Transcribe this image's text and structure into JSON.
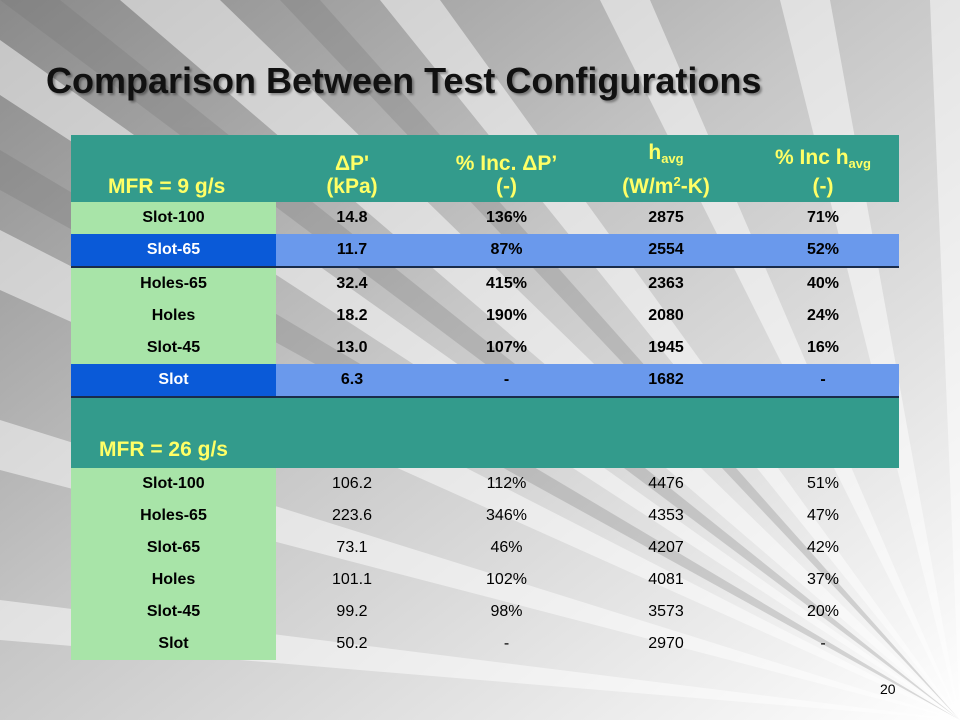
{
  "slide": {
    "title": "Comparison Between Test Configurations",
    "page_number": "20"
  },
  "table1": {
    "mfr_label": "MFR = 9 g/s",
    "headers": {
      "dp_line1": "ΔP'",
      "dp_line2": "(kPa)",
      "incdp_line1": "% Inc. ΔP’",
      "incdp_line2": "(-)",
      "havg_base": "h",
      "havg_sub": "avg",
      "havg_unit_a": "(W/m",
      "havg_unit_sup": "2",
      "havg_unit_b": "-K)",
      "inch_base": "% Inc h",
      "inch_sub": "avg",
      "inch_line2": "(-)"
    },
    "rows": [
      {
        "label": "Slot-100",
        "dp": "14.8",
        "inc_dp": "136%",
        "havg": "2875",
        "inc_h": "71%"
      },
      {
        "label": "Slot-65",
        "dp": "11.7",
        "inc_dp": "87%",
        "havg": "2554",
        "inc_h": "52%"
      },
      {
        "label": "Holes-65",
        "dp": "32.4",
        "inc_dp": "415%",
        "havg": "2363",
        "inc_h": "40%"
      },
      {
        "label": "Holes",
        "dp": "18.2",
        "inc_dp": "190%",
        "havg": "2080",
        "inc_h": "24%"
      },
      {
        "label": "Slot-45",
        "dp": "13.0",
        "inc_dp": "107%",
        "havg": "1945",
        "inc_h": "16%"
      },
      {
        "label": "Slot",
        "dp": "6.3",
        "inc_dp": "-",
        "havg": "1682",
        "inc_h": "-"
      }
    ]
  },
  "table2": {
    "mfr_label": "MFR = 26 g/s",
    "rows": [
      {
        "label": "Slot-100",
        "dp": "106.2",
        "inc_dp": "112%",
        "havg": "4476",
        "inc_h": "51%"
      },
      {
        "label": "Holes-65",
        "dp": "223.6",
        "inc_dp": "346%",
        "havg": "4353",
        "inc_h": "47%"
      },
      {
        "label": "Slot-65",
        "dp": "73.1",
        "inc_dp": "46%",
        "havg": "4207",
        "inc_h": "42%"
      },
      {
        "label": "Holes",
        "dp": "101.1",
        "inc_dp": "102%",
        "havg": "4081",
        "inc_h": "37%"
      },
      {
        "label": "Slot-45",
        "dp": "99.2",
        "inc_dp": "98%",
        "havg": "3573",
        "inc_h": "20%"
      },
      {
        "label": "Slot",
        "dp": "50.2",
        "inc_dp": "-",
        "havg": "2970",
        "inc_h": "-"
      }
    ]
  },
  "colors": {
    "header_bg": "#339b8c",
    "header_text": "#ffff66",
    "label_bg": "#a8e4a8",
    "highlight_label_bg": "#0a5ad8",
    "highlight_value_bg": "#6a99ec"
  }
}
